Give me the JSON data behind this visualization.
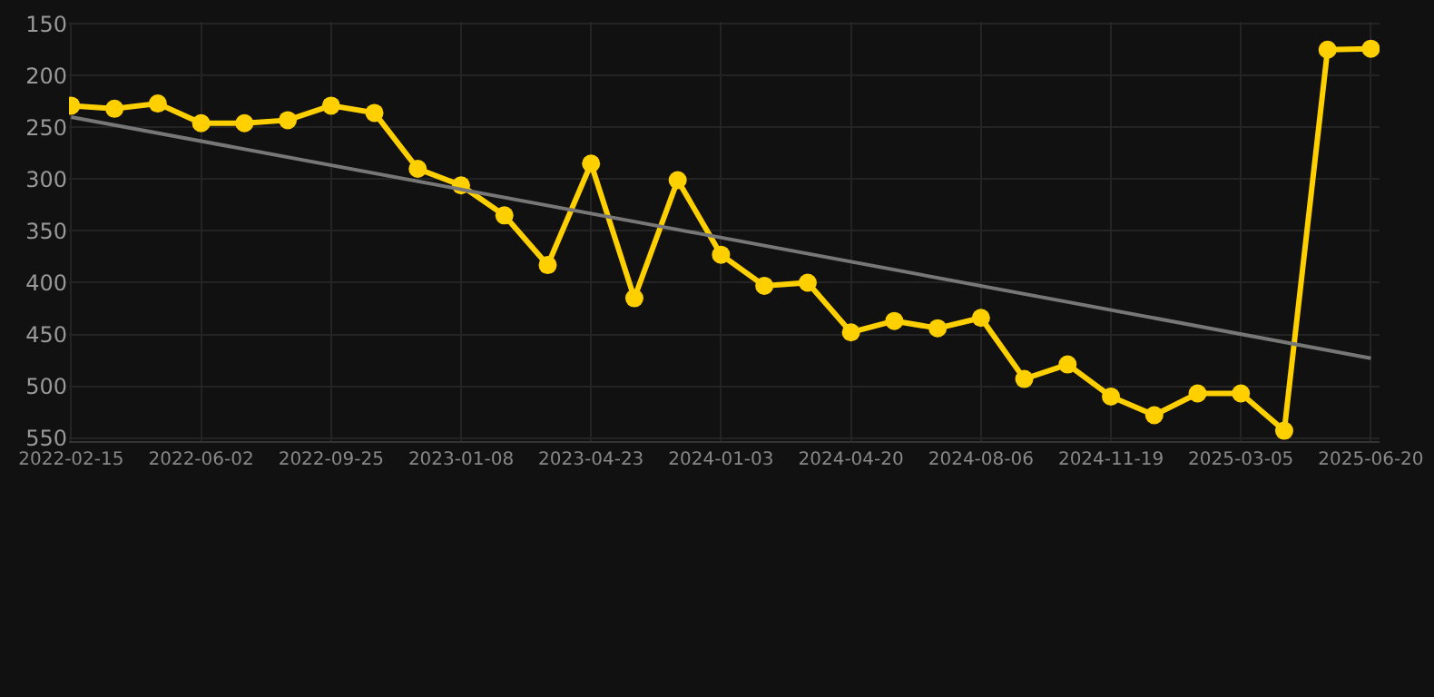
{
  "chart_data": {
    "type": "line",
    "categories": [
      "2022-02-15",
      null,
      null,
      "2022-06-02",
      null,
      null,
      "2022-09-25",
      null,
      null,
      "2023-01-08",
      null,
      null,
      "2023-04-23",
      null,
      null,
      "2024-01-03",
      null,
      null,
      "2024-04-20",
      null,
      null,
      "2024-08-06",
      null,
      null,
      "2024-11-19",
      null,
      null,
      "2025-03-05",
      null,
      null,
      "2025-06-20"
    ],
    "series": [
      {
        "color": "#ffd000",
        "marker": "circle",
        "values": [
          229,
          232,
          227,
          246,
          246,
          243,
          229,
          236,
          290,
          306,
          335,
          383,
          285,
          415,
          301,
          373,
          403,
          400,
          448,
          437,
          444,
          434,
          493,
          479,
          510,
          528,
          507,
          507,
          543,
          175,
          174
        ]
      },
      {
        "color": "#777777",
        "marker": "none",
        "values": [
          240,
          null,
          null,
          null,
          null,
          null,
          null,
          null,
          null,
          null,
          null,
          null,
          null,
          null,
          null,
          null,
          null,
          null,
          null,
          null,
          null,
          null,
          null,
          null,
          null,
          null,
          null,
          null,
          null,
          null,
          473
        ]
      }
    ],
    "ylim": [
      553,
      148
    ],
    "yticks": [
      150,
      200,
      250,
      300,
      350,
      400,
      450,
      500,
      550
    ],
    "grid": true
  }
}
